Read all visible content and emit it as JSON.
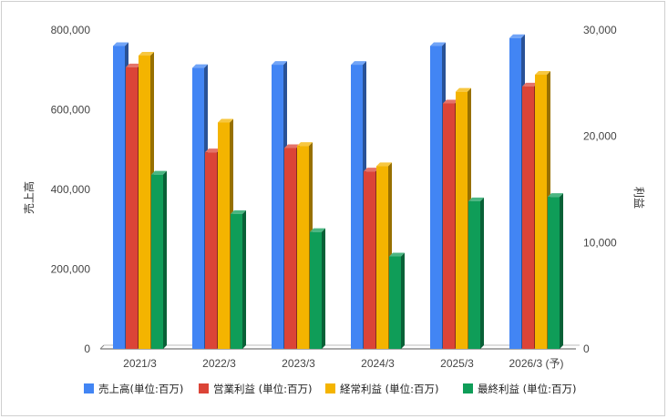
{
  "chart_data": {
    "type": "bar",
    "categories": [
      "2021/3",
      "2022/3",
      "2023/3",
      "2024/3",
      "2025/3",
      "2026/3 (予)"
    ],
    "ylabel_left": "売上高",
    "ylabel_right": "利益",
    "ylim_left": [
      0,
      800000
    ],
    "ylim_right": [
      0,
      30000
    ],
    "yticks_left": [
      "0",
      "200,000",
      "400,000",
      "600,000",
      "800,000"
    ],
    "yticks_right": [
      "0",
      "10,000",
      "20,000",
      "30,000"
    ],
    "grid": false,
    "legend_position": "bottom",
    "series": [
      {
        "name": "売上高(単位:百万)",
        "axis": "left",
        "color": "#4285F4",
        "values": [
          760000,
          705000,
          713000,
          713000,
          760000,
          780000
        ]
      },
      {
        "name": "営業利益 (単位:百万)",
        "axis": "right",
        "color": "#DB4437",
        "values": [
          26500,
          18500,
          18900,
          16700,
          23100,
          24700
        ]
      },
      {
        "name": "経常利益 (単位:百万)",
        "axis": "right",
        "color": "#F4B400",
        "values": [
          27600,
          21300,
          19100,
          17200,
          24200,
          25800
        ]
      },
      {
        "name": "最終利益 (単位:百万)",
        "axis": "right",
        "color": "#0F9D58",
        "values": [
          16400,
          12700,
          11000,
          8700,
          13900,
          14300
        ]
      }
    ]
  }
}
